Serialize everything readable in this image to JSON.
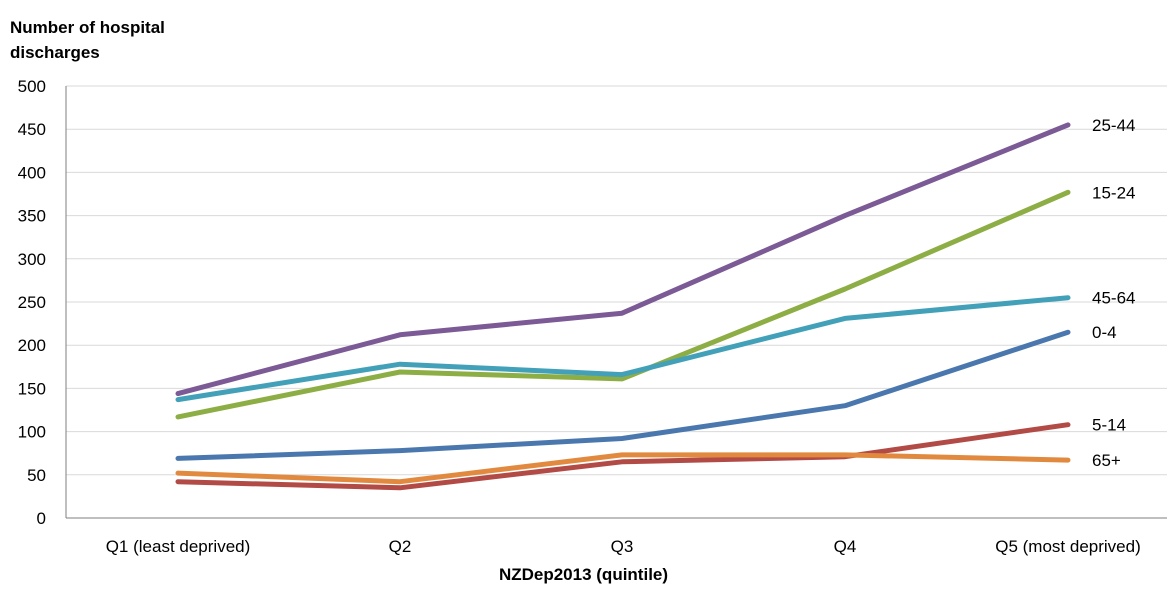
{
  "chart_data": {
    "type": "line",
    "title": "",
    "ylabel": "Number of hospital discharges",
    "xlabel": "NZDep2013 (quintile)",
    "categories": [
      "Q1 (least deprived)",
      "Q2",
      "Q3",
      "Q4",
      "Q5 (most deprived)"
    ],
    "ylim": [
      0,
      500
    ],
    "yticks": [
      0,
      50,
      100,
      150,
      200,
      250,
      300,
      350,
      400,
      450,
      500
    ],
    "grid": true,
    "legend": "end-of-line labels",
    "series": [
      {
        "name": "25-44",
        "color": "#7b5a96",
        "values": [
          144,
          212,
          237,
          350,
          455
        ]
      },
      {
        "name": "15-24",
        "color": "#8dad45",
        "values": [
          117,
          169,
          161,
          265,
          377
        ]
      },
      {
        "name": "45-64",
        "color": "#42a1b9",
        "values": [
          137,
          178,
          166,
          231,
          255
        ]
      },
      {
        "name": "0-4",
        "color": "#4a78ae",
        "values": [
          69,
          78,
          92,
          130,
          215
        ]
      },
      {
        "name": "5-14",
        "color": "#b24a45",
        "values": [
          42,
          35,
          65,
          71,
          108
        ]
      },
      {
        "name": "65+",
        "color": "#e18a3f",
        "values": [
          52,
          42,
          73,
          73,
          67
        ]
      }
    ]
  }
}
